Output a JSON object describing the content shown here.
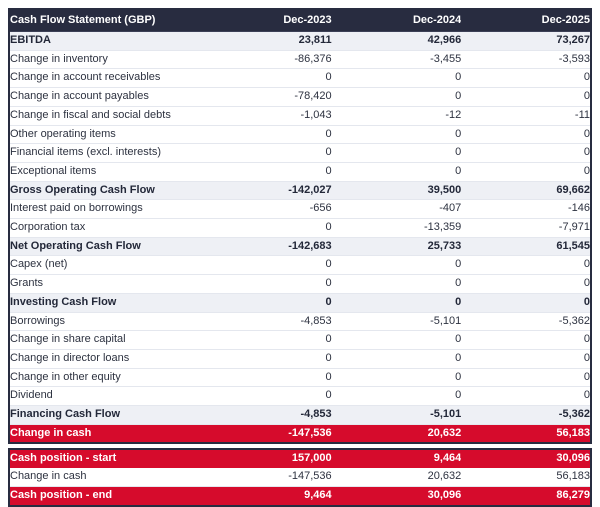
{
  "chart_data": {
    "type": "table",
    "title": "Cash Flow Statement (GBP)",
    "columns": [
      "Dec-2023",
      "Dec-2024",
      "Dec-2025"
    ],
    "rows": [
      {
        "label": "EBITDA",
        "values": [
          "23,811",
          "42,966",
          "73,267"
        ],
        "style": "subtotal"
      },
      {
        "label": "Change in inventory",
        "values": [
          "-86,376",
          "-3,455",
          "-3,593"
        ],
        "style": "normal"
      },
      {
        "label": "Change in account receivables",
        "values": [
          "0",
          "0",
          "0"
        ],
        "style": "normal"
      },
      {
        "label": "Change in account payables",
        "values": [
          "-78,420",
          "0",
          "0"
        ],
        "style": "normal"
      },
      {
        "label": "Change in fiscal and social debts",
        "values": [
          "-1,043",
          "-12",
          "-11"
        ],
        "style": "normal"
      },
      {
        "label": "Other operating items",
        "values": [
          "0",
          "0",
          "0"
        ],
        "style": "normal"
      },
      {
        "label": "Financial items (excl. interests)",
        "values": [
          "0",
          "0",
          "0"
        ],
        "style": "normal"
      },
      {
        "label": "Exceptional items",
        "values": [
          "0",
          "0",
          "0"
        ],
        "style": "normal"
      },
      {
        "label": "Gross Operating Cash Flow",
        "values": [
          "-142,027",
          "39,500",
          "69,662"
        ],
        "style": "subtotal"
      },
      {
        "label": "Interest paid on borrowings",
        "values": [
          "-656",
          "-407",
          "-146"
        ],
        "style": "normal"
      },
      {
        "label": "Corporation tax",
        "values": [
          "0",
          "-13,359",
          "-7,971"
        ],
        "style": "normal"
      },
      {
        "label": "Net Operating Cash Flow",
        "values": [
          "-142,683",
          "25,733",
          "61,545"
        ],
        "style": "subtotal"
      },
      {
        "label": "Capex (net)",
        "values": [
          "0",
          "0",
          "0"
        ],
        "style": "normal"
      },
      {
        "label": "Grants",
        "values": [
          "0",
          "0",
          "0"
        ],
        "style": "normal"
      },
      {
        "label": "Investing Cash Flow",
        "values": [
          "0",
          "0",
          "0"
        ],
        "style": "subtotal"
      },
      {
        "label": "Borrowings",
        "values": [
          "-4,853",
          "-5,101",
          "-5,362"
        ],
        "style": "normal"
      },
      {
        "label": "Change in share capital",
        "values": [
          "0",
          "0",
          "0"
        ],
        "style": "normal"
      },
      {
        "label": "Change in director loans",
        "values": [
          "0",
          "0",
          "0"
        ],
        "style": "normal"
      },
      {
        "label": "Change in other equity",
        "values": [
          "0",
          "0",
          "0"
        ],
        "style": "normal"
      },
      {
        "label": "Dividend",
        "values": [
          "0",
          "0",
          "0"
        ],
        "style": "normal"
      },
      {
        "label": "Financing Cash Flow",
        "values": [
          "-4,853",
          "-5,101",
          "-5,362"
        ],
        "style": "subtotal"
      },
      {
        "label": "Change in cash",
        "values": [
          "-147,536",
          "20,632",
          "56,183"
        ],
        "style": "highlight"
      }
    ],
    "summary_rows": [
      {
        "label": "Cash position - start",
        "values": [
          "157,000",
          "9,464",
          "30,096"
        ],
        "style": "highlight"
      },
      {
        "label": "Change in cash",
        "values": [
          "-147,536",
          "20,632",
          "56,183"
        ],
        "style": "normal"
      },
      {
        "label": "Cash position - end",
        "values": [
          "9,464",
          "30,096",
          "86,279"
        ],
        "style": "highlight"
      }
    ],
    "layout": {
      "grid": "horizontal-row-separators",
      "value_alignment": "right",
      "legend_position": "none"
    }
  },
  "colors": {
    "header_bg": "#282c40",
    "header_text": "#ffffff",
    "accent_red": "#d60b2c",
    "subtotal_bg": "#eef0f5",
    "row_separator": "#e4e7ee",
    "body_text": "#2d3240"
  }
}
